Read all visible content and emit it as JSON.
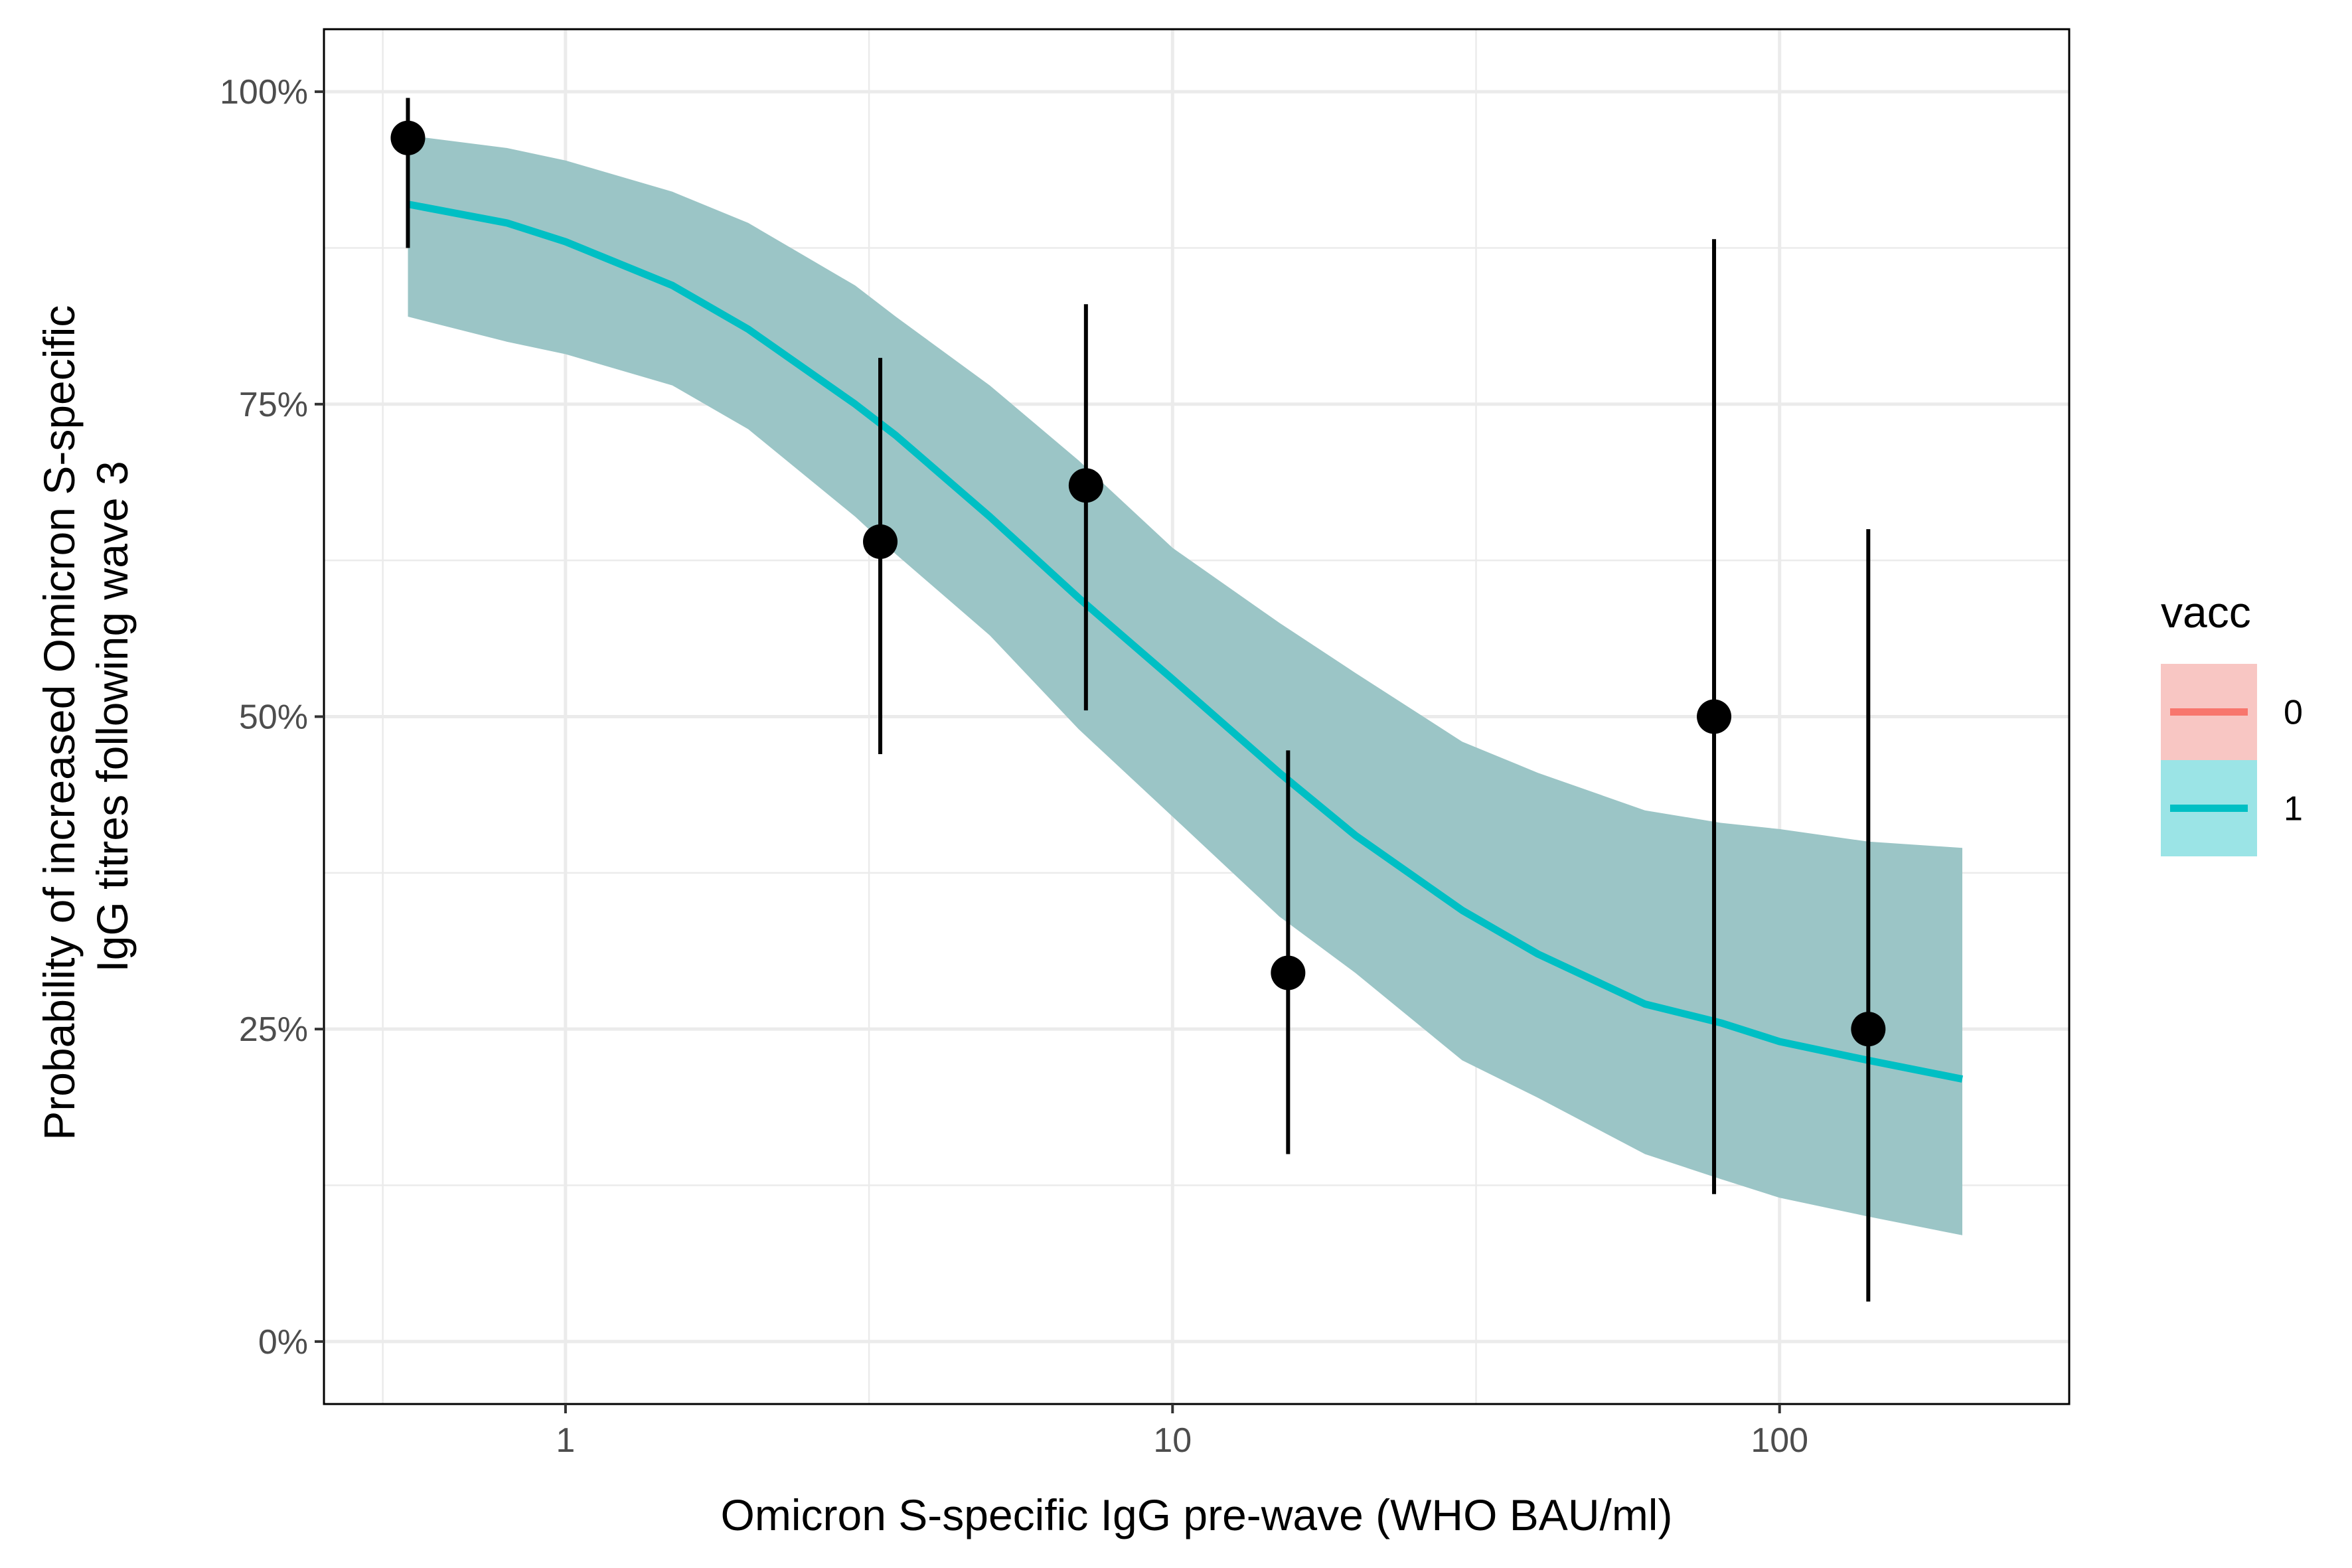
{
  "chart_data": {
    "type": "line",
    "xlabel": "Omicron S-specific IgG pre-wave (WHO BAU/ml)",
    "ylabel_lines": [
      "Probability of increased Omicron S-specific",
      "IgG titres following wave 3"
    ],
    "x_scale": "log10",
    "xlim": [
      0.4,
      300
    ],
    "ylim": [
      -0.05,
      1.05
    ],
    "x_ticks": [
      1,
      10,
      100
    ],
    "x_tick_labels": [
      "1",
      "10",
      "100"
    ],
    "y_ticks": [
      0,
      0.25,
      0.5,
      0.75,
      1.0
    ],
    "y_tick_labels": [
      "0%",
      "25%",
      "50%",
      "75%",
      "100%"
    ],
    "grid": true,
    "legend": {
      "title": "vacc",
      "position": "right",
      "entries": [
        {
          "label": "0",
          "line_color": "#F8766D",
          "fill_color": "#F8C6C3"
        },
        {
          "label": "1",
          "line_color": "#00BFC4",
          "fill_color": "#9BE4E6"
        }
      ]
    },
    "fit_curve": {
      "color": "#00BFC4",
      "band_color": "#9BC5C6",
      "x": [
        0.55,
        0.8,
        1.0,
        1.5,
        2.0,
        3.0,
        3.5,
        5.0,
        7.0,
        10.0,
        15.0,
        20.0,
        30.0,
        40.0,
        60.0,
        80.0,
        100.0,
        140.0,
        200.0
      ],
      "y": [
        0.91,
        0.895,
        0.88,
        0.845,
        0.81,
        0.75,
        0.725,
        0.66,
        0.595,
        0.53,
        0.455,
        0.405,
        0.345,
        0.31,
        0.27,
        0.255,
        0.24,
        0.225,
        0.21
      ],
      "lower": [
        0.82,
        0.8,
        0.79,
        0.765,
        0.73,
        0.66,
        0.63,
        0.565,
        0.49,
        0.42,
        0.34,
        0.295,
        0.225,
        0.195,
        0.15,
        0.13,
        0.115,
        0.1,
        0.085
      ],
      "upper": [
        0.965,
        0.955,
        0.945,
        0.92,
        0.895,
        0.845,
        0.82,
        0.765,
        0.705,
        0.635,
        0.575,
        0.535,
        0.48,
        0.455,
        0.425,
        0.415,
        0.41,
        0.4,
        0.395
      ]
    },
    "points": [
      {
        "x": 0.55,
        "y": 0.963,
        "lower": 0.875,
        "upper": 0.995
      },
      {
        "x": 3.3,
        "y": 0.64,
        "lower": 0.47,
        "upper": 0.787
      },
      {
        "x": 7.2,
        "y": 0.685,
        "lower": 0.505,
        "upper": 0.83
      },
      {
        "x": 15.5,
        "y": 0.295,
        "lower": 0.15,
        "upper": 0.473
      },
      {
        "x": 78.0,
        "y": 0.5,
        "lower": 0.118,
        "upper": 0.882
      },
      {
        "x": 140.0,
        "y": 0.25,
        "lower": 0.032,
        "upper": 0.65
      }
    ]
  }
}
